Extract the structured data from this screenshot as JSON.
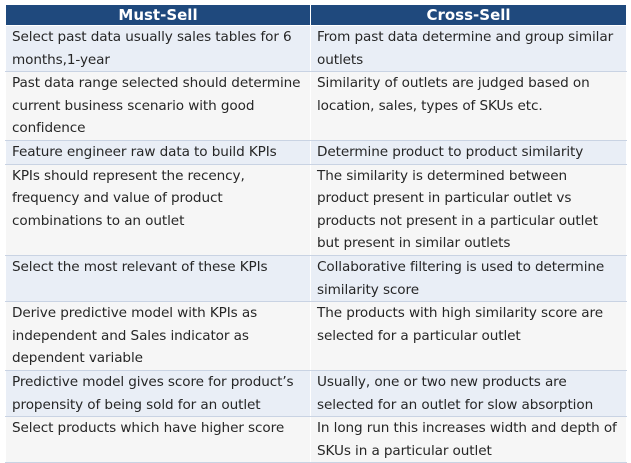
{
  "table": {
    "headers": [
      "Must-Sell",
      "Cross-Sell"
    ],
    "rows": [
      [
        "Select past data usually sales tables for 6 months,1-year",
        "From past data determine and group similar outlets"
      ],
      [
        "Past data range selected should determine current business scenario with good confidence",
        "Similarity of outlets are judged based on location, sales, types of SKUs etc."
      ],
      [
        "Feature engineer raw data to build KPIs",
        "Determine product to product similarity"
      ],
      [
        "KPIs should represent the recency, frequency and value of product combinations to an outlet",
        "The similarity is determined between product present in particular outlet vs products not present in a particular outlet but present in similar outlets"
      ],
      [
        "Select the most relevant of these KPIs",
        "Collaborative filtering is used to determine similarity score"
      ],
      [
        "Derive predictive model with KPIs as independent and Sales indicator as dependent variable",
        "The products with high similarity score are selected for a particular outlet"
      ],
      [
        "Predictive model gives score for product’s propensity of being sold for an outlet",
        "Usually, one or two new products are selected for an outlet for slow absorption"
      ],
      [
        "Select products which have higher score",
        "In long run this increases width and depth of SKUs in a particular outlet"
      ]
    ]
  },
  "colors": {
    "header_bg": "#1f497d",
    "header_text": "#ffffff",
    "row_odd_bg": "#e9eef6",
    "row_even_bg": "#f6f6f6",
    "body_text": "#262626"
  }
}
